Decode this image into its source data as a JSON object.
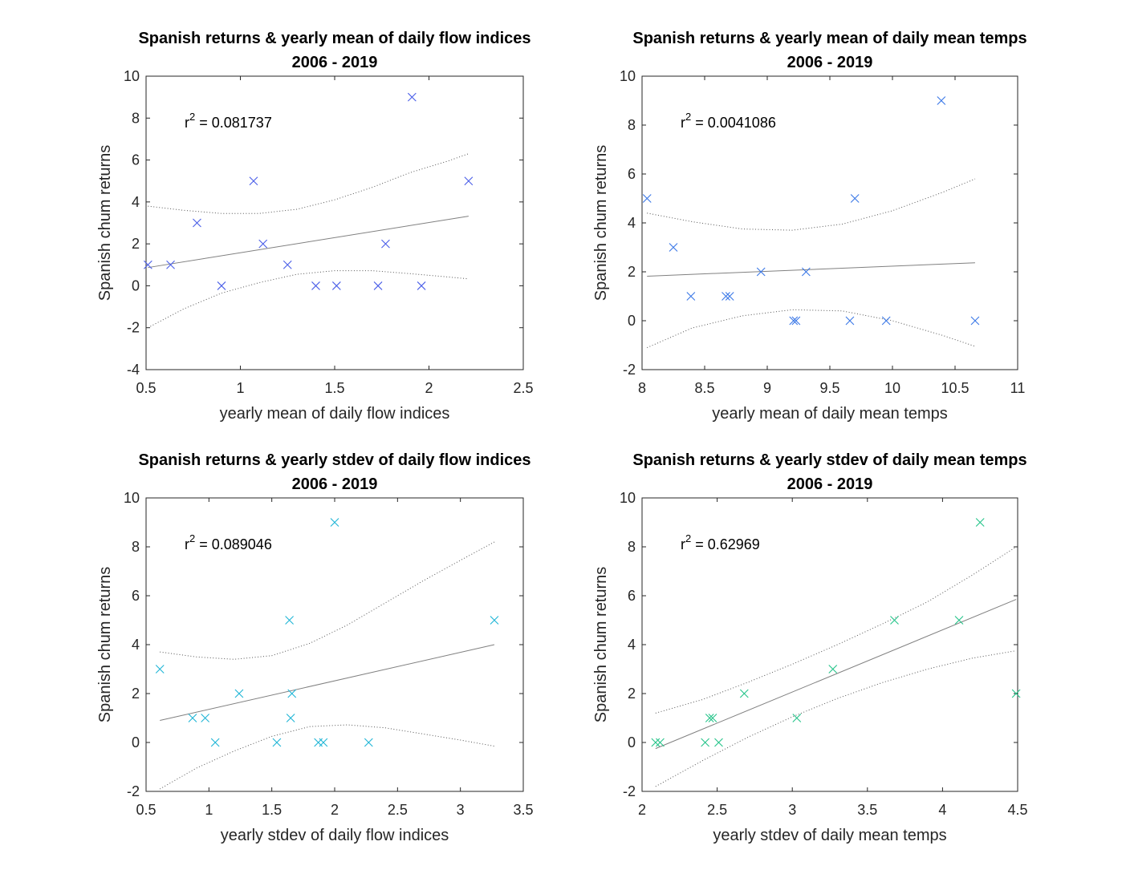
{
  "figure": {
    "background": "#ffffff"
  },
  "colors": {
    "fit_line": "#808080",
    "axis": "#262626"
  },
  "chart_data": [
    {
      "type": "scatter",
      "title": "Spanish returns & yearly mean of daily flow indices",
      "subtitle": "2006 - 2019",
      "xlabel": "yearly mean of daily flow indices",
      "ylabel": "Spanish chum returns",
      "xlim": [
        0.5,
        2.5
      ],
      "ylim": [
        -4,
        10
      ],
      "xticks": [
        0.5,
        1,
        1.5,
        2,
        2.5
      ],
      "xtick_labels": [
        "0.5",
        "1",
        "1.5",
        "2",
        "2.5"
      ],
      "yticks": [
        -4,
        -2,
        0,
        2,
        4,
        6,
        8,
        10
      ],
      "ytick_labels": [
        "-4",
        "-2",
        "0",
        "2",
        "4",
        "6",
        "8",
        "10"
      ],
      "r2_label": "r",
      "r2_sup": "2",
      "r2_value": " = 0.081737",
      "marker_color": "#4a5ee8",
      "points": {
        "x": [
          0.51,
          0.63,
          0.77,
          0.9,
          1.07,
          1.12,
          1.25,
          1.4,
          1.51,
          1.73,
          1.77,
          1.91,
          1.96,
          2.21
        ],
        "y": [
          1,
          1,
          3,
          0,
          5,
          2,
          1,
          0,
          0,
          0,
          2,
          9,
          0,
          5
        ]
      },
      "fit": {
        "x": [
          0.51,
          2.21
        ],
        "y": [
          0.87,
          3.32
        ]
      },
      "ci_upper": {
        "x": [
          0.51,
          0.7,
          0.9,
          1.1,
          1.3,
          1.5,
          1.7,
          1.9,
          2.1,
          2.21
        ],
        "y": [
          3.8,
          3.6,
          3.45,
          3.45,
          3.65,
          4.1,
          4.7,
          5.4,
          5.95,
          6.3
        ]
      },
      "ci_lower": {
        "x": [
          0.51,
          0.7,
          0.9,
          1.1,
          1.3,
          1.5,
          1.7,
          1.9,
          2.1,
          2.21
        ],
        "y": [
          -2.0,
          -1.1,
          -0.35,
          0.15,
          0.55,
          0.72,
          0.72,
          0.58,
          0.42,
          0.33
        ]
      },
      "annotation_pos": "top-left"
    },
    {
      "type": "scatter",
      "title": "Spanish returns & yearly mean of daily mean temps",
      "subtitle": "2006 - 2019",
      "xlabel": "yearly mean of daily mean temps",
      "ylabel": "Spanish chum returns",
      "xlim": [
        8,
        11
      ],
      "ylim": [
        -2,
        10
      ],
      "xticks": [
        8,
        8.5,
        9,
        9.5,
        10,
        10.5,
        11
      ],
      "xtick_labels": [
        "8",
        "8.5",
        "9",
        "9.5",
        "10",
        "10.5",
        "11"
      ],
      "yticks": [
        -2,
        0,
        2,
        4,
        6,
        8,
        10
      ],
      "ytick_labels": [
        "-2",
        "0",
        "2",
        "4",
        "6",
        "8",
        "10"
      ],
      "r2_label": "r",
      "r2_sup": "2",
      "r2_value": " = 0.0041086",
      "marker_color": "#3b78e7",
      "points": {
        "x": [
          8.04,
          8.25,
          8.39,
          8.67,
          8.7,
          8.95,
          9.21,
          9.23,
          9.31,
          9.66,
          9.7,
          9.95,
          10.39,
          10.66
        ],
        "y": [
          5,
          3,
          1,
          1,
          1,
          2,
          0,
          0,
          2,
          0,
          5,
          0,
          9,
          0
        ]
      },
      "fit": {
        "x": [
          8.04,
          10.66
        ],
        "y": [
          1.82,
          2.37
        ]
      },
      "ci_upper": {
        "x": [
          8.04,
          8.4,
          8.8,
          9.2,
          9.6,
          10.0,
          10.4,
          10.66
        ],
        "y": [
          4.4,
          4.05,
          3.75,
          3.7,
          3.95,
          4.5,
          5.25,
          5.8
        ]
      },
      "ci_lower": {
        "x": [
          8.04,
          8.4,
          8.8,
          9.2,
          9.6,
          10.0,
          10.4,
          10.66
        ],
        "y": [
          -1.1,
          -0.3,
          0.2,
          0.45,
          0.4,
          0.0,
          -0.6,
          -1.05
        ]
      },
      "annotation_pos": "top-left"
    },
    {
      "type": "scatter",
      "title": "Spanish returns & yearly stdev of daily flow indices",
      "subtitle": "2006 - 2019",
      "xlabel": "yearly stdev of daily flow indices",
      "ylabel": "Spanish chum returns",
      "xlim": [
        0.5,
        3.5
      ],
      "ylim": [
        -2,
        10
      ],
      "xticks": [
        0.5,
        1,
        1.5,
        2,
        2.5,
        3,
        3.5
      ],
      "xtick_labels": [
        "0.5",
        "1",
        "1.5",
        "2",
        "2.5",
        "3",
        "3.5"
      ],
      "yticks": [
        -2,
        0,
        2,
        4,
        6,
        8,
        10
      ],
      "ytick_labels": [
        "-2",
        "0",
        "2",
        "4",
        "6",
        "8",
        "10"
      ],
      "r2_label": "r",
      "r2_sup": "2",
      "r2_value": " = 0.089046",
      "marker_color": "#1fb5d6",
      "points": {
        "x": [
          0.61,
          0.87,
          0.97,
          1.05,
          1.24,
          1.54,
          1.64,
          1.65,
          1.66,
          1.87,
          1.91,
          2.0,
          2.27,
          3.27
        ],
        "y": [
          3,
          1,
          1,
          0,
          2,
          0,
          5,
          1,
          2,
          0,
          0,
          9,
          0,
          5
        ]
      },
      "fit": {
        "x": [
          0.61,
          3.27
        ],
        "y": [
          0.9,
          4.0
        ]
      },
      "ci_upper": {
        "x": [
          0.61,
          0.9,
          1.2,
          1.5,
          1.8,
          2.1,
          2.4,
          2.7,
          3.0,
          3.27
        ],
        "y": [
          3.7,
          3.5,
          3.4,
          3.55,
          4.05,
          4.8,
          5.7,
          6.6,
          7.45,
          8.2
        ]
      },
      "ci_lower": {
        "x": [
          0.61,
          0.9,
          1.2,
          1.5,
          1.8,
          2.1,
          2.4,
          2.7,
          3.0,
          3.27
        ],
        "y": [
          -1.9,
          -1.05,
          -0.35,
          0.25,
          0.65,
          0.72,
          0.6,
          0.35,
          0.1,
          -0.15
        ]
      },
      "annotation_pos": "top-left"
    },
    {
      "type": "scatter",
      "title": "Spanish returns & yearly stdev of daily mean temps",
      "subtitle": "2006 - 2019",
      "xlabel": "yearly stdev of daily mean temps",
      "ylabel": "Spanish chum returns",
      "xlim": [
        2,
        4.5
      ],
      "ylim": [
        -2,
        10
      ],
      "xticks": [
        2,
        2.5,
        3,
        3.5,
        4,
        4.5
      ],
      "xtick_labels": [
        "2",
        "2.5",
        "3",
        "3.5",
        "4",
        "4.5"
      ],
      "yticks": [
        -2,
        0,
        2,
        4,
        6,
        8,
        10
      ],
      "ytick_labels": [
        "-2",
        "0",
        "2",
        "4",
        "6",
        "8",
        "10"
      ],
      "r2_label": "r",
      "r2_sup": "2",
      "r2_value": " = 0.62969",
      "marker_color": "#26c48a",
      "points": {
        "x": [
          2.09,
          2.12,
          2.42,
          2.45,
          2.47,
          2.51,
          2.68,
          3.03,
          3.27,
          3.68,
          4.11,
          4.25,
          4.49
        ],
        "y": [
          0,
          0,
          0,
          1,
          1,
          0,
          2,
          1,
          3,
          5,
          5,
          9,
          2
        ]
      },
      "fit": {
        "x": [
          2.09,
          4.49
        ],
        "y": [
          -0.25,
          5.85
        ]
      },
      "ci_upper": {
        "x": [
          2.09,
          2.4,
          2.7,
          3.0,
          3.3,
          3.6,
          3.9,
          4.2,
          4.49
        ],
        "y": [
          1.2,
          1.75,
          2.45,
          3.2,
          4.0,
          4.85,
          5.75,
          6.85,
          8.0
        ]
      },
      "ci_lower": {
        "x": [
          2.09,
          2.4,
          2.7,
          3.0,
          3.3,
          3.6,
          3.9,
          4.2,
          4.49
        ],
        "y": [
          -1.8,
          -0.75,
          0.2,
          1.05,
          1.8,
          2.45,
          3.0,
          3.45,
          3.75
        ]
      },
      "annotation_pos": "top-left"
    }
  ]
}
